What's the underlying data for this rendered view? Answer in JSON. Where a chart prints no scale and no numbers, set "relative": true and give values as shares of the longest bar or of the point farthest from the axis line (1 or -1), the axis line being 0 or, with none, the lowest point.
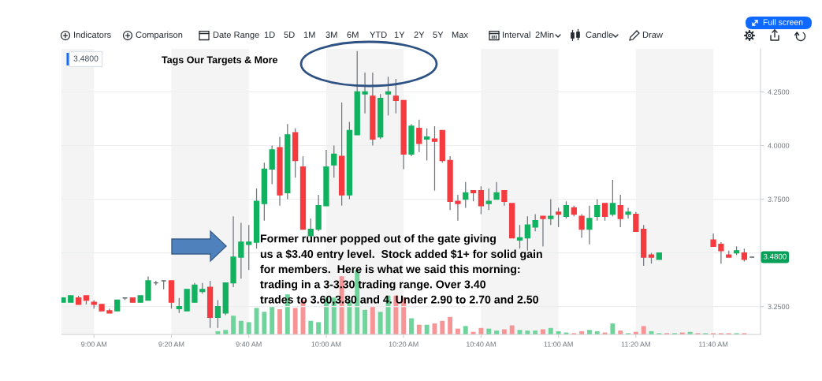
{
  "chart_data": [
    {
      "type": "candlestick",
      "x": [
        8.8667,
        8.9,
        8.9333,
        8.9667,
        9.0,
        9.0333,
        9.0667,
        9.1,
        9.1333,
        9.1667,
        9.2,
        9.2333,
        9.2667,
        9.3,
        9.3333,
        9.3667,
        9.4,
        9.4333,
        9.4667,
        9.5,
        9.5333,
        9.5667,
        9.6,
        9.6333,
        9.6667,
        9.7,
        9.7333,
        9.7667,
        9.8,
        9.8333,
        9.8667,
        9.9,
        9.9333,
        9.9667,
        10.0,
        10.0333,
        10.0667,
        10.1,
        10.1333,
        10.1667,
        10.2,
        10.2333,
        10.2667,
        10.3,
        10.3333,
        10.3667,
        10.4,
        10.4333,
        10.4667,
        10.5,
        10.5333,
        10.5667,
        10.6,
        10.6333,
        10.6667,
        10.7,
        10.7333,
        10.7667,
        10.8,
        10.8333,
        10.8667,
        10.9,
        10.9333,
        10.9667,
        11.0,
        11.0333,
        11.0667,
        11.1,
        11.1333,
        11.1667,
        11.2,
        11.2333,
        11.2667,
        11.3,
        11.3333,
        11.3667,
        11.4,
        11.4333,
        11.6667,
        11.7,
        11.7333,
        11.7667,
        11.8,
        11.8333
      ],
      "ohlc": [
        [
          3.27,
          3.29,
          3.27,
          3.29
        ],
        [
          3.27,
          3.3,
          3.27,
          3.3
        ],
        [
          3.29,
          3.3,
          3.26,
          3.26
        ],
        [
          3.3,
          3.3,
          3.26,
          3.28
        ],
        [
          3.27,
          3.28,
          3.24,
          3.26
        ],
        [
          3.26,
          3.26,
          3.23,
          3.23
        ],
        [
          3.23,
          3.24,
          3.22,
          3.22
        ],
        [
          3.23,
          3.28,
          3.23,
          3.28
        ],
        [
          3.29,
          3.29,
          3.28,
          3.29
        ],
        [
          3.29,
          3.29,
          3.27,
          3.27
        ],
        [
          3.27,
          3.3,
          3.27,
          3.3
        ],
        [
          3.28,
          3.39,
          3.28,
          3.37
        ],
        [
          3.36,
          3.37,
          3.35,
          3.36
        ],
        [
          3.37,
          3.37,
          3.33,
          3.37
        ],
        [
          3.37,
          3.37,
          3.24,
          3.27
        ],
        [
          3.24,
          3.29,
          3.22,
          3.25
        ],
        [
          3.23,
          3.33,
          3.23,
          3.33
        ],
        [
          3.27,
          3.36,
          3.27,
          3.35
        ],
        [
          3.32,
          3.36,
          3.31,
          3.33
        ],
        [
          3.34,
          3.37,
          3.15,
          3.2
        ],
        [
          3.2,
          3.28,
          3.15,
          3.25
        ],
        [
          3.22,
          3.36,
          3.21,
          3.36
        ],
        [
          3.36,
          3.67,
          3.34,
          3.48
        ],
        [
          3.48,
          3.64,
          3.38,
          3.55
        ],
        [
          3.54,
          3.63,
          3.42,
          3.55
        ],
        [
          3.55,
          3.8,
          3.52,
          3.74
        ],
        [
          3.73,
          3.92,
          3.65,
          3.89
        ],
        [
          3.89,
          4.0,
          3.82,
          3.98
        ],
        [
          3.99,
          4.04,
          3.72,
          3.77
        ],
        [
          3.78,
          4.1,
          3.75,
          4.05
        ],
        [
          4.06,
          4.08,
          3.85,
          3.93
        ],
        [
          3.9,
          3.95,
          3.61,
          3.61
        ],
        [
          3.58,
          3.66,
          3.57,
          3.61
        ],
        [
          3.61,
          3.77,
          3.6,
          3.72
        ],
        [
          3.72,
          3.98,
          3.72,
          3.9
        ],
        [
          3.91,
          4.0,
          3.85,
          3.96
        ],
        [
          3.95,
          4.2,
          3.72,
          3.77
        ],
        [
          3.77,
          4.11,
          3.75,
          4.07
        ],
        [
          4.05,
          4.44,
          4.05,
          4.25
        ],
        [
          4.24,
          4.34,
          4.15,
          4.25
        ],
        [
          4.23,
          4.34,
          4.0,
          4.03
        ],
        [
          4.04,
          4.24,
          4.03,
          4.22
        ],
        [
          4.24,
          4.32,
          4.14,
          4.25
        ],
        [
          4.23,
          4.31,
          4.15,
          4.21
        ],
        [
          4.21,
          4.21,
          3.89,
          3.96
        ],
        [
          3.96,
          4.1,
          3.95,
          4.09
        ],
        [
          4.08,
          4.12,
          3.97,
          4.01
        ],
        [
          4.03,
          4.08,
          3.93,
          4.04
        ],
        [
          4.03,
          4.09,
          3.79,
          4.02
        ],
        [
          4.07,
          4.07,
          3.92,
          3.93
        ],
        [
          3.93,
          3.95,
          3.7,
          3.74
        ],
        [
          3.74,
          3.77,
          3.65,
          3.73
        ],
        [
          3.75,
          3.83,
          3.71,
          3.78
        ],
        [
          3.79,
          3.79,
          3.74,
          3.78
        ],
        [
          3.79,
          3.81,
          3.68,
          3.72
        ],
        [
          3.73,
          3.8,
          3.7,
          3.74
        ],
        [
          3.75,
          3.83,
          3.75,
          3.78
        ],
        [
          3.79,
          3.79,
          3.72,
          3.74
        ],
        [
          3.73,
          3.73,
          3.57,
          3.57
        ],
        [
          3.56,
          3.63,
          3.52,
          3.57
        ],
        [
          3.57,
          3.67,
          3.51,
          3.63
        ],
        [
          3.62,
          3.68,
          3.6,
          3.65
        ],
        [
          3.67,
          3.67,
          3.53,
          3.66
        ],
        [
          3.66,
          3.75,
          3.63,
          3.67
        ],
        [
          3.69,
          3.71,
          3.62,
          3.68
        ],
        [
          3.67,
          3.74,
          3.66,
          3.72
        ],
        [
          3.71,
          3.72,
          3.67,
          3.68
        ],
        [
          3.67,
          3.68,
          3.57,
          3.61
        ],
        [
          3.61,
          3.72,
          3.54,
          3.66
        ],
        [
          3.67,
          3.75,
          3.65,
          3.72
        ],
        [
          3.73,
          3.73,
          3.65,
          3.67
        ],
        [
          3.68,
          3.84,
          3.67,
          3.73
        ],
        [
          3.72,
          3.77,
          3.62,
          3.66
        ],
        [
          3.68,
          3.71,
          3.66,
          3.69
        ],
        [
          3.68,
          3.69,
          3.6,
          3.6
        ],
        [
          3.61,
          3.63,
          3.44,
          3.48
        ],
        [
          3.49,
          3.5,
          3.45,
          3.48
        ],
        [
          3.47,
          3.5,
          3.47,
          3.5
        ],
        [
          3.56,
          3.59,
          3.53,
          3.53
        ],
        [
          3.54,
          3.55,
          3.45,
          3.51
        ],
        [
          3.49,
          3.51,
          3.48,
          3.48
        ],
        [
          3.5,
          3.53,
          3.49,
          3.51
        ],
        [
          3.5,
          3.52,
          3.46,
          3.47
        ],
        [
          3.48,
          3.48,
          3.48,
          3.48
        ]
      ],
      "colors": [
        "#10b15f",
        "#10b15f",
        "#f53b3f",
        "#f53b3f",
        "#f53b3f",
        "#f53b3f",
        "#f53b3f",
        "#10b15f",
        "#5d6369",
        "#f53b3f",
        "#10b15f",
        "#10b15f",
        "#5d6369",
        "#5d6369",
        "#f53b3f",
        "#10b15f",
        "#10b15f",
        "#10b15f",
        "#10b15f",
        "#f53b3f",
        "#10b15f",
        "#10b15f",
        "#10b15f",
        "#10b15f",
        "#10b15f",
        "#10b15f",
        "#10b15f",
        "#10b15f",
        "#f53b3f",
        "#10b15f",
        "#f53b3f",
        "#f53b3f",
        "#10b15f",
        "#10b15f",
        "#10b15f",
        "#10b15f",
        "#f53b3f",
        "#10b15f",
        "#10b15f",
        "#10b15f",
        "#f53b3f",
        "#10b15f",
        "#10b15f",
        "#f53b3f",
        "#f53b3f",
        "#10b15f",
        "#f53b3f",
        "#10b15f",
        "#f53b3f",
        "#f53b3f",
        "#f53b3f",
        "#f53b3f",
        "#10b15f",
        "#f53b3f",
        "#f53b3f",
        "#10b15f",
        "#10b15f",
        "#f53b3f",
        "#f53b3f",
        "#10b15f",
        "#10b15f",
        "#10b15f",
        "#f53b3f",
        "#10b15f",
        "#f53b3f",
        "#10b15f",
        "#f53b3f",
        "#f53b3f",
        "#10b15f",
        "#10b15f",
        "#f53b3f",
        "#10b15f",
        "#f53b3f",
        "#10b15f",
        "#f53b3f",
        "#f53b3f",
        "#f53b3f",
        "#10b15f",
        "#f53b3f",
        "#f53b3f",
        "#f53b3f",
        "#10b15f",
        "#f53b3f",
        "#5d6369"
      ],
      "xlim": [
        8.86,
        11.87
      ],
      "ylim": [
        3.12,
        4.45
      ],
      "xticks": [
        {
          "value": 9.0,
          "label": "9:00 AM"
        },
        {
          "value": 9.3333,
          "label": "9:20 AM"
        },
        {
          "value": 9.6667,
          "label": "9:40 AM"
        },
        {
          "value": 10.0,
          "label": "10:00 AM"
        },
        {
          "value": 10.3333,
          "label": "10:20 AM"
        },
        {
          "value": 10.6667,
          "label": "10:40 AM"
        },
        {
          "value": 11.0,
          "label": "11:00 AM"
        },
        {
          "value": 11.3333,
          "label": "11:20 AM"
        },
        {
          "value": 11.6667,
          "label": "11:40 AM"
        }
      ],
      "yticks": [
        {
          "value": 3.25,
          "label": "3.2500"
        },
        {
          "value": 3.5,
          "label": null
        },
        {
          "value": 3.75,
          "label": "3.7500"
        },
        {
          "value": 4.0,
          "label": "4.0000"
        },
        {
          "value": 4.25,
          "label": "4.2500"
        }
      ],
      "grid": "y",
      "bands": [
        {
          "axis": "x",
          "from": 8.86,
          "to": 9.0,
          "color": "#f4f4f4"
        },
        {
          "axis": "x",
          "from": 9.3333,
          "to": 9.6667,
          "color": "#f4f4f4"
        },
        {
          "axis": "x",
          "from": 10.0,
          "to": 10.3333,
          "color": "#f4f4f4"
        },
        {
          "axis": "x",
          "from": 10.6667,
          "to": 11.0,
          "color": "#f4f4f4"
        },
        {
          "axis": "x",
          "from": 11.3333,
          "to": 11.6667,
          "color": "#f4f4f4"
        }
      ],
      "annotations": [
        "Indicators",
        "Comparison",
        "Date Range",
        "1D",
        "5D",
        "1M",
        "3M",
        "6M",
        "YTD",
        "1Y",
        "2Y",
        "5Y",
        "Max",
        "Interval",
        "2Min",
        "Candle",
        "Draw",
        "Full screen",
        "3.4800",
        "Tags Our Targets & More",
        "Former runner popped out of the gate giving\nus a $3.40 entry level.  Stock added $1+ for solid gain\nfor members.  Here is what we said this morning:\ntrading in a 3-3.30 trading range. Over 3.40\ntrades to 3.60,3.80 and 4. Under 2.90 to 2.70 and 2.50",
        {
          "text": "3.4800",
          "y": 3.48
        }
      ]
    },
    {
      "type": "bar",
      "relative": true,
      "x": [
        9.5333,
        9.5667,
        9.6,
        9.6333,
        9.6667,
        9.7,
        9.7333,
        9.7667,
        9.8,
        9.8333,
        9.8667,
        9.9,
        9.9333,
        9.9667,
        10.0,
        10.0333,
        10.0667,
        10.1,
        10.1333,
        10.1667,
        10.2,
        10.2333,
        10.2667,
        10.3,
        10.3333,
        10.3667,
        10.4,
        10.4333,
        10.4667,
        10.5,
        10.5333,
        10.5667,
        10.6,
        10.6333,
        10.6667,
        10.7,
        10.7333,
        10.7667,
        10.8,
        10.8333,
        10.8667,
        10.9,
        10.9333,
        10.9667,
        11.0,
        11.0333,
        11.0667,
        11.1,
        11.1333,
        11.1667,
        11.2,
        11.2333,
        11.2667,
        11.3,
        11.3333,
        11.3667,
        11.4,
        11.4333,
        11.4667,
        11.5,
        11.5333,
        11.5667,
        11.6,
        11.6333,
        11.6667,
        11.7,
        11.7333,
        11.7667,
        11.8
      ],
      "values": [
        0.05,
        0.07,
        0.29,
        0.21,
        0.19,
        0.41,
        0.35,
        0.43,
        0.39,
        0.62,
        0.41,
        0.53,
        0.21,
        0.19,
        0.57,
        0.57,
        0.9,
        0.53,
        1.0,
        0.38,
        0.43,
        0.35,
        0.6,
        0.6,
        0.57,
        0.25,
        0.15,
        0.15,
        0.17,
        0.21,
        0.27,
        0.09,
        0.13,
        0.04,
        0.1,
        0.09,
        0.06,
        0.08,
        0.14,
        0.07,
        0.06,
        0.06,
        0.08,
        0.1,
        0.05,
        0.03,
        0.02,
        0.05,
        0.07,
        0.05,
        0.03,
        0.17,
        0.06,
        0.02,
        0.04,
        0.13,
        0.05,
        0.02,
        0.02,
        0.02,
        0.03,
        0.04,
        0.02,
        0.02,
        0.02,
        0.02,
        0.02,
        0.02,
        0.02
      ],
      "colors": [
        "#6fd39c",
        "#6fd39c",
        "#6fd39c",
        "#6fd39c",
        "#6fd39c",
        "#6fd39c",
        "#6fd39c",
        "#6fd39c",
        "#f79496",
        "#6fd39c",
        "#f79496",
        "#f79496",
        "#6fd39c",
        "#6fd39c",
        "#6fd39c",
        "#6fd39c",
        "#f79496",
        "#6fd39c",
        "#6fd39c",
        "#6fd39c",
        "#f79496",
        "#6fd39c",
        "#6fd39c",
        "#f79496",
        "#f79496",
        "#6fd39c",
        "#f79496",
        "#6fd39c",
        "#f79496",
        "#f79496",
        "#f79496",
        "#f79496",
        "#6fd39c",
        "#f79496",
        "#f79496",
        "#6fd39c",
        "#6fd39c",
        "#f79496",
        "#f79496",
        "#6fd39c",
        "#6fd39c",
        "#6fd39c",
        "#f79496",
        "#6fd39c",
        "#6fd39c",
        "#6fd39c",
        "#f79496",
        "#f79496",
        "#6fd39c",
        "#6fd39c",
        "#f79496",
        "#6fd39c",
        "#f79496",
        "#6fd39c",
        "#f79496",
        "#f79496",
        "#6fd39c",
        "#6fd39c",
        "#f79496",
        "#6fd39c",
        "#f79496",
        "#6fd39c",
        "#f79496",
        "#6fd39c",
        "#f79496",
        "#f79496",
        "#f79496",
        "#6fd39c",
        "#f79496"
      ],
      "xlim": [
        8.86,
        11.87
      ],
      "tick_labels": false
    }
  ]
}
